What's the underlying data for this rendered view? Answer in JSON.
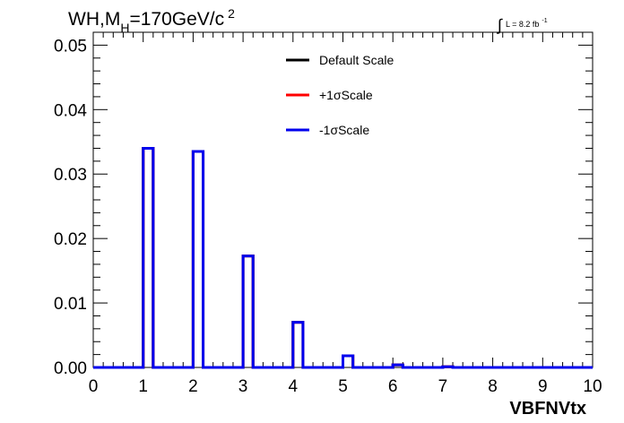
{
  "chart_data": {
    "type": "line",
    "title": {
      "main": "WH,M",
      "sub": "H",
      "rest": "=170GeV/c",
      "sup": "2"
    },
    "luminosity": {
      "integral": "∫",
      "text": "L = 8.2 fb",
      "sup": "-1"
    },
    "xlabel": "VBFNVtx",
    "ylabel": "",
    "xlim": [
      0,
      10
    ],
    "ylim": [
      0,
      0.052
    ],
    "xticks": [
      "0",
      "1",
      "2",
      "3",
      "4",
      "5",
      "6",
      "7",
      "8",
      "9",
      "10"
    ],
    "yticks": [
      "0.00",
      "0.01",
      "0.02",
      "0.03",
      "0.04",
      "0.05"
    ],
    "ytick_values": [
      0,
      0.01,
      0.02,
      0.03,
      0.04,
      0.05
    ],
    "bin_edges": [
      1,
      1.2,
      2,
      2.2,
      3,
      3.2,
      4,
      4.2,
      5,
      5.2,
      6,
      6.2,
      7,
      7.2
    ],
    "peaks": [
      {
        "x0": 1,
        "x1": 1.2,
        "y": 0.034
      },
      {
        "x0": 2,
        "x1": 2.2,
        "y": 0.0335
      },
      {
        "x0": 3,
        "x1": 3.2,
        "y": 0.0173
      },
      {
        "x0": 4,
        "x1": 4.2,
        "y": 0.007
      },
      {
        "x0": 5,
        "x1": 5.2,
        "y": 0.0018
      },
      {
        "x0": 6,
        "x1": 6.2,
        "y": 0.0004
      },
      {
        "x0": 7,
        "x1": 7.2,
        "y": 0.0001
      }
    ],
    "series": [
      {
        "name": "Default Scale",
        "color": "#000000"
      },
      {
        "name": "+1σScale",
        "color": "#ff0000"
      },
      {
        "name": "-1σScale",
        "color": "#0000ee"
      }
    ],
    "legend_position": "top-center",
    "grid": false
  }
}
